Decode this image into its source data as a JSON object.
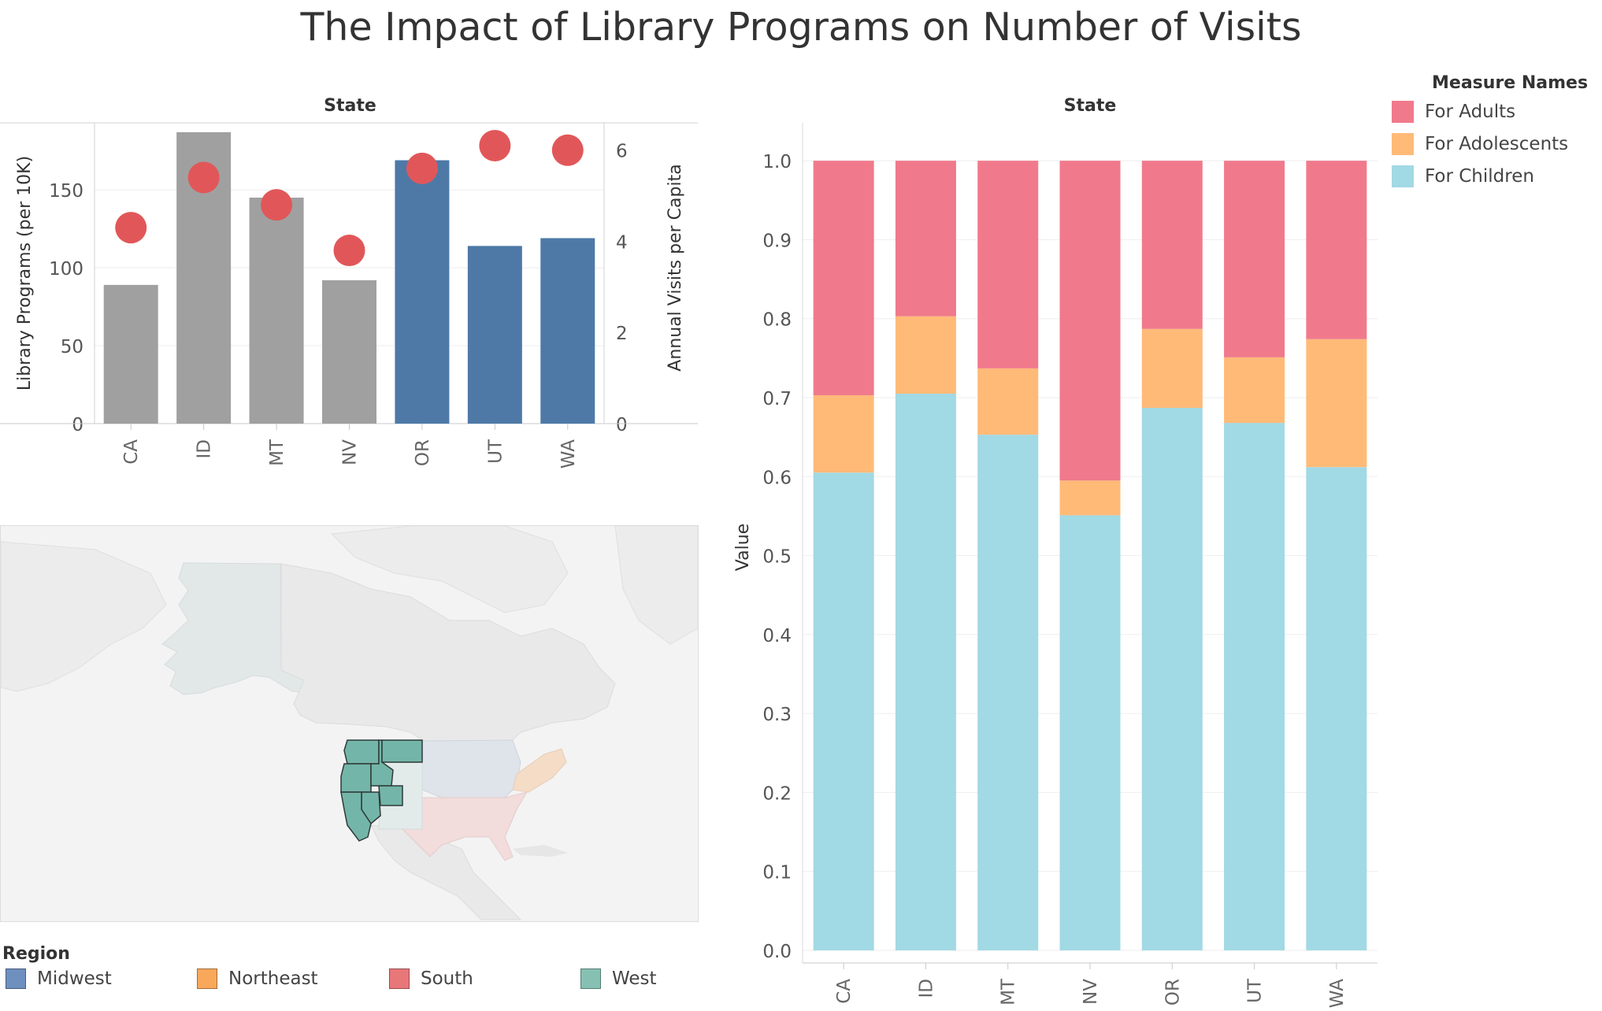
{
  "title": "The Impact of Library Programs on Number of Visits",
  "bar_chart": {
    "header": "State",
    "ylabel_left": "Library Programs (per 10K)",
    "ylabel_right": "Annual Visits per Capita",
    "left_ticks": [
      "0",
      "50",
      "100",
      "150"
    ],
    "right_ticks": [
      "0",
      "2",
      "4",
      "6"
    ]
  },
  "stacked_chart": {
    "header": "State",
    "ylabel": "Value",
    "ticks": [
      "0.0",
      "0.1",
      "0.2",
      "0.3",
      "0.4",
      "0.5",
      "0.6",
      "0.7",
      "0.8",
      "0.9",
      "1.0"
    ]
  },
  "legend_measures": {
    "title": "Measure Names",
    "items": [
      {
        "label": "For Adults",
        "color": "#F07A8C"
      },
      {
        "label": "For Adolescents",
        "color": "#FFBA78"
      },
      {
        "label": "For Children",
        "color": "#A1D9E4"
      }
    ]
  },
  "legend_region": {
    "title": "Region",
    "items": [
      {
        "label": "Midwest",
        "color": "#6F8FBF"
      },
      {
        "label": "Northeast",
        "color": "#F9A85B"
      },
      {
        "label": "South",
        "color": "#E8777A"
      },
      {
        "label": "West",
        "color": "#86C0B2"
      }
    ]
  },
  "chart_data": [
    {
      "type": "bar",
      "title": "",
      "xlabel": "State",
      "ylabel": "Library Programs (per 10K)",
      "y2label": "Annual Visits per Capita",
      "categories": [
        "CA",
        "ID",
        "MT",
        "NV",
        "OR",
        "UT",
        "WA"
      ],
      "series": [
        {
          "name": "Library Programs (per 10K)",
          "values": [
            89,
            187,
            145,
            92,
            169,
            114,
            119
          ],
          "colors": [
            "#A0A0A0",
            "#A0A0A0",
            "#A0A0A0",
            "#A0A0A0",
            "#4E79A7",
            "#4E79A7",
            "#4E79A7"
          ]
        },
        {
          "name": "Annual Visits per Capita",
          "axis": "right",
          "mark": "circle",
          "color": "#E15759",
          "values": [
            4.3,
            5.4,
            4.8,
            3.8,
            5.6,
            6.1,
            6.0
          ]
        }
      ],
      "ylim": [
        0,
        193
      ],
      "y2lim": [
        0,
        6.6
      ]
    },
    {
      "type": "bar",
      "stacked": true,
      "title": "",
      "xlabel": "State",
      "ylabel": "Value",
      "categories": [
        "CA",
        "ID",
        "MT",
        "NV",
        "OR",
        "UT",
        "WA"
      ],
      "series": [
        {
          "name": "For Children",
          "values": [
            0.605,
            0.705,
            0.653,
            0.551,
            0.687,
            0.668,
            0.612
          ]
        },
        {
          "name": "For Adolescents",
          "values": [
            0.098,
            0.098,
            0.084,
            0.044,
            0.1,
            0.083,
            0.162
          ]
        },
        {
          "name": "For Adults",
          "values": [
            0.297,
            0.197,
            0.263,
            0.405,
            0.213,
            0.249,
            0.226
          ]
        }
      ],
      "ylim": [
        -0.016,
        1.048
      ]
    }
  ]
}
